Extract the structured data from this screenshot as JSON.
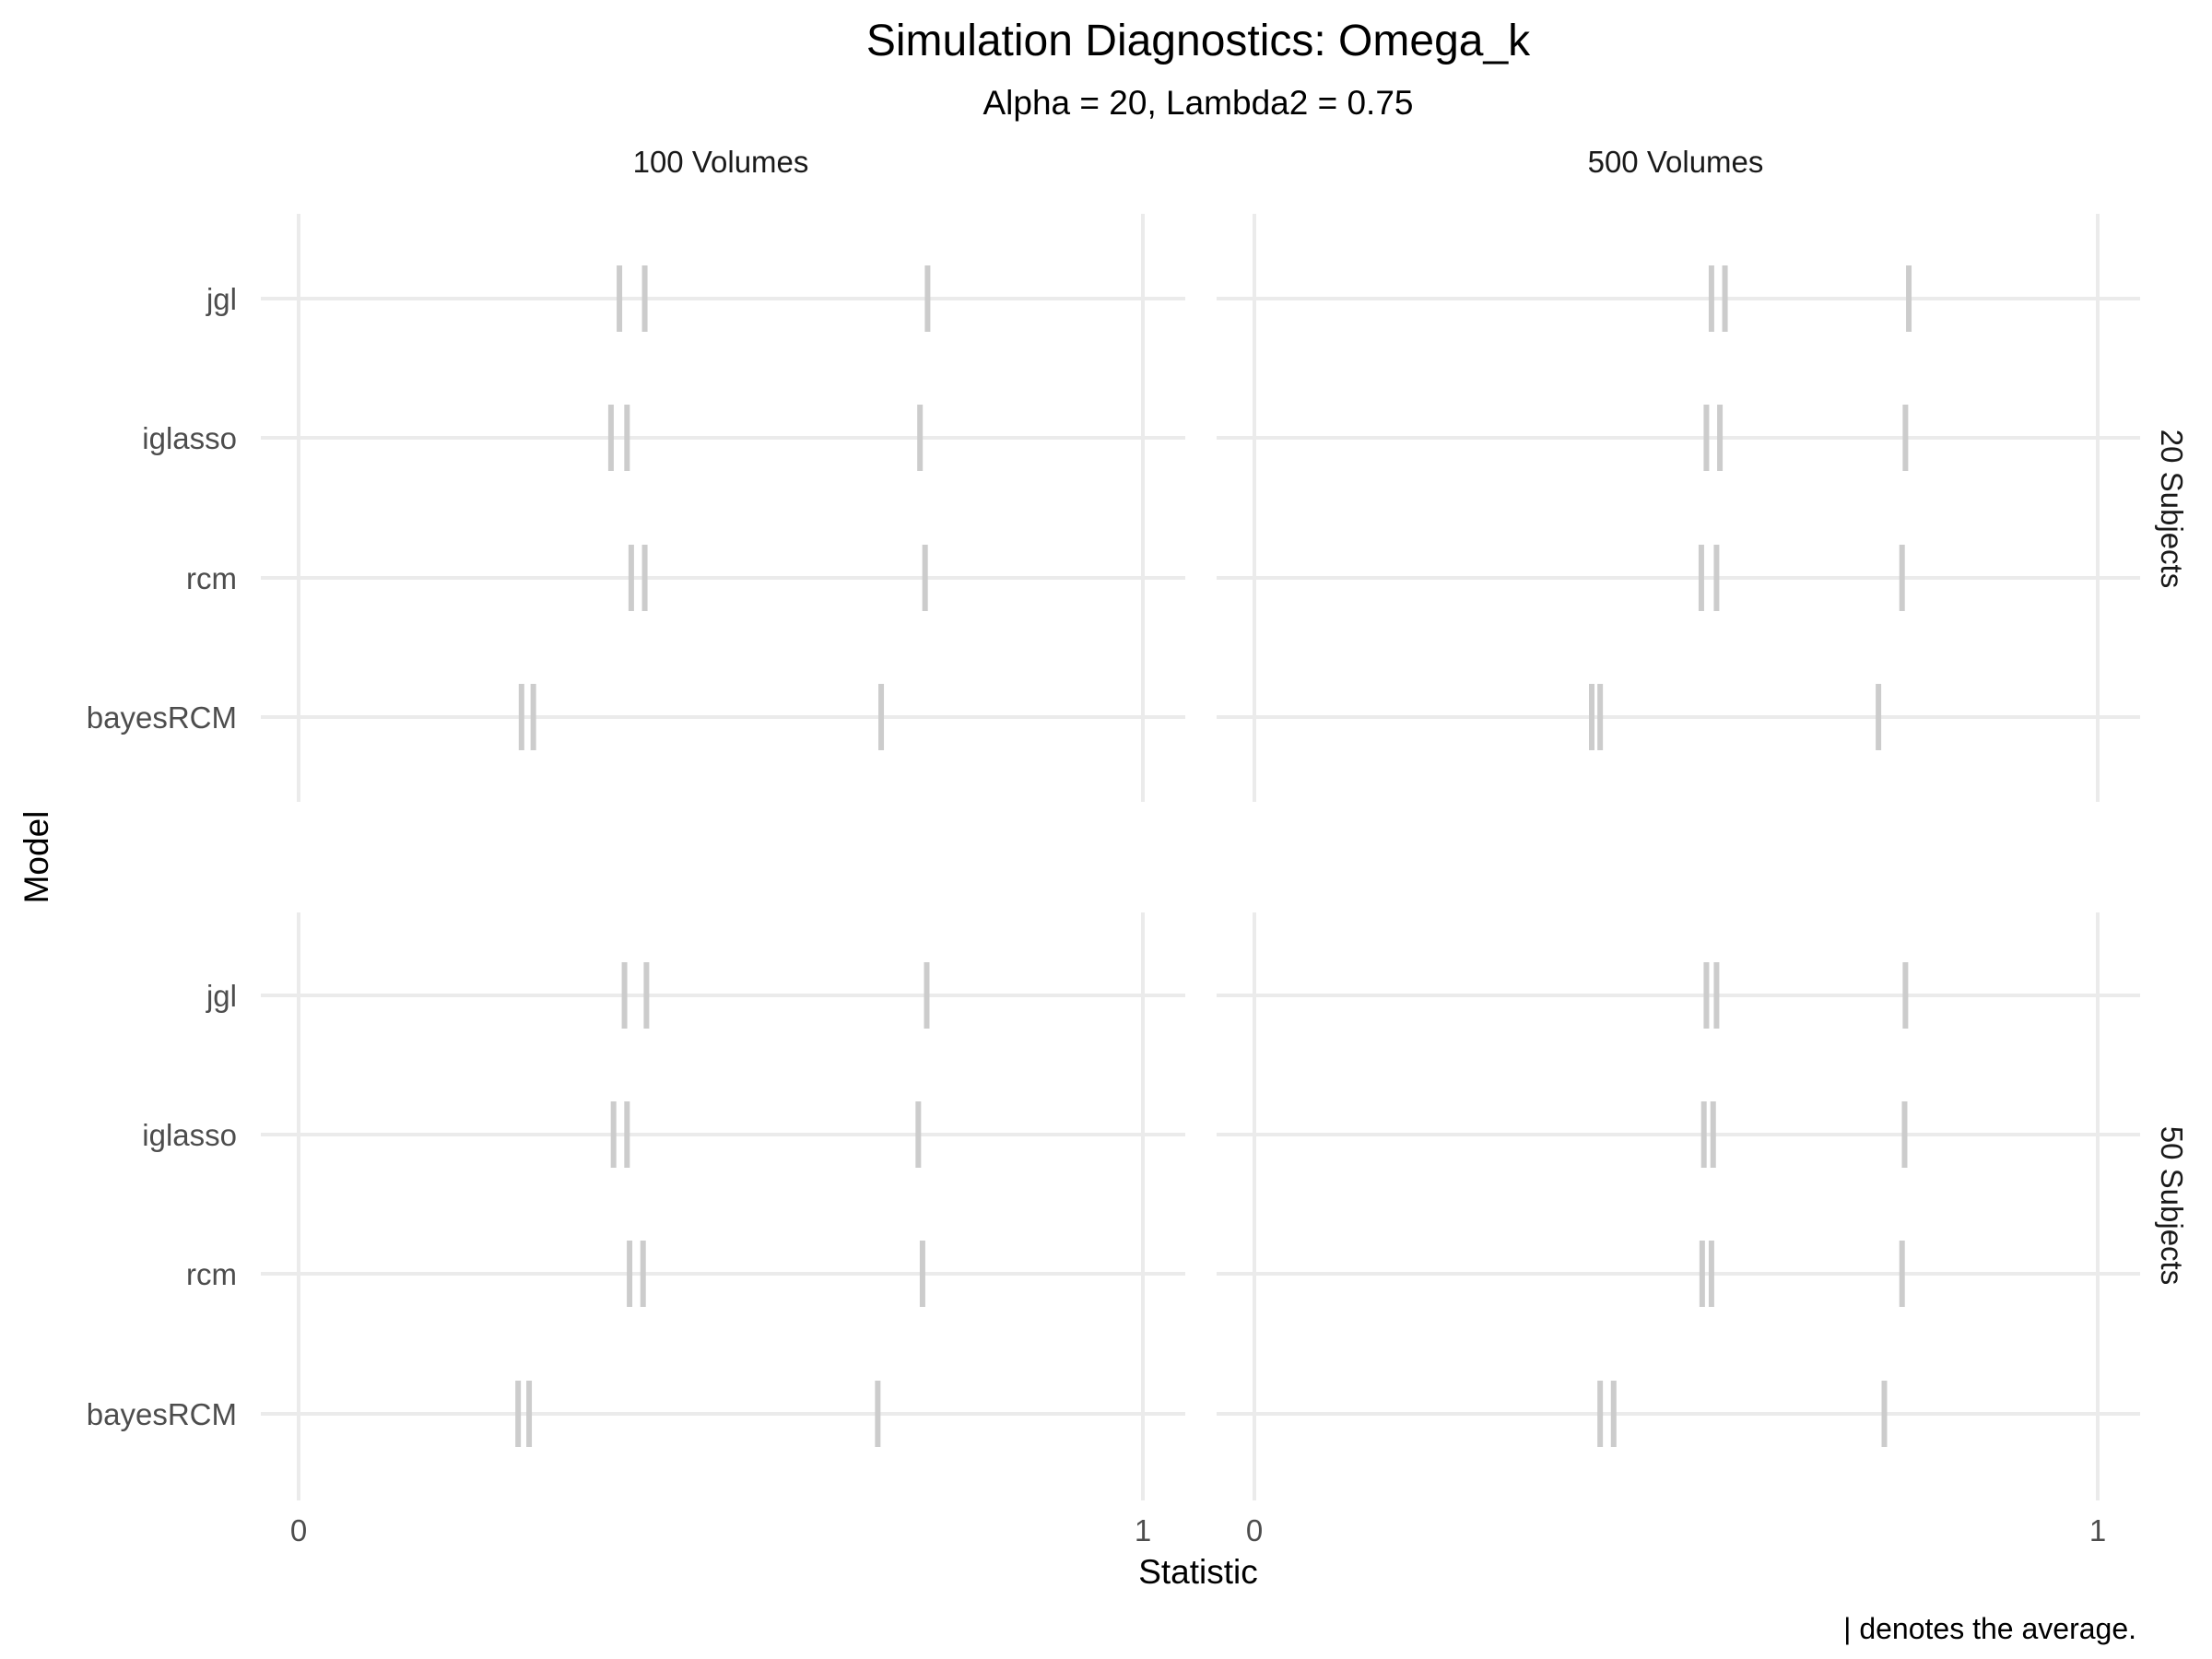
{
  "chart_data": {
    "type": "tick",
    "title": "Simulation Diagnostics: Omega_k",
    "subtitle": "Alpha = 20, Lambda2 = 0.75",
    "xlabel": "Statistic",
    "ylabel": "Model",
    "caption": "| denotes the average.",
    "xlim": [
      0,
      1
    ],
    "x_ticks": [
      "0",
      "1"
    ],
    "models": [
      "jgl",
      "iglasso",
      "rcm",
      "bayesRCM"
    ],
    "columns": [
      "100 Volumes",
      "500 Volumes"
    ],
    "rows": [
      "20 Subjects",
      "50 Subjects"
    ],
    "grid": true,
    "tick_color": "#cccccc",
    "panels": [
      {
        "column": "100 Volumes",
        "row": "20 Subjects",
        "values": {
          "jgl": [
            0.38,
            0.41,
            0.745
          ],
          "iglasso": [
            0.37,
            0.389,
            0.736
          ],
          "rcm": [
            0.394,
            0.41,
            0.742
          ],
          "bayesRCM": [
            0.264,
            0.278,
            0.69
          ]
        }
      },
      {
        "column": "500 Volumes",
        "row": "20 Subjects",
        "values": {
          "jgl": [
            0.542,
            0.558,
            0.776
          ],
          "iglasso": [
            0.536,
            0.552,
            0.772
          ],
          "rcm": [
            0.53,
            0.548,
            0.768
          ],
          "bayesRCM": [
            0.4,
            0.41,
            0.74
          ]
        }
      },
      {
        "column": "100 Volumes",
        "row": "50 Subjects",
        "values": {
          "jgl": [
            0.386,
            0.412,
            0.744
          ],
          "iglasso": [
            0.373,
            0.389,
            0.734
          ],
          "rcm": [
            0.392,
            0.408,
            0.739
          ],
          "bayesRCM": [
            0.26,
            0.273,
            0.686
          ]
        }
      },
      {
        "column": "500 Volumes",
        "row": "50 Subjects",
        "values": {
          "jgl": [
            0.536,
            0.548,
            0.772
          ],
          "iglasso": [
            0.533,
            0.544,
            0.771
          ],
          "rcm": [
            0.531,
            0.542,
            0.768
          ],
          "bayesRCM": [
            0.41,
            0.426,
            0.747
          ]
        }
      }
    ]
  }
}
